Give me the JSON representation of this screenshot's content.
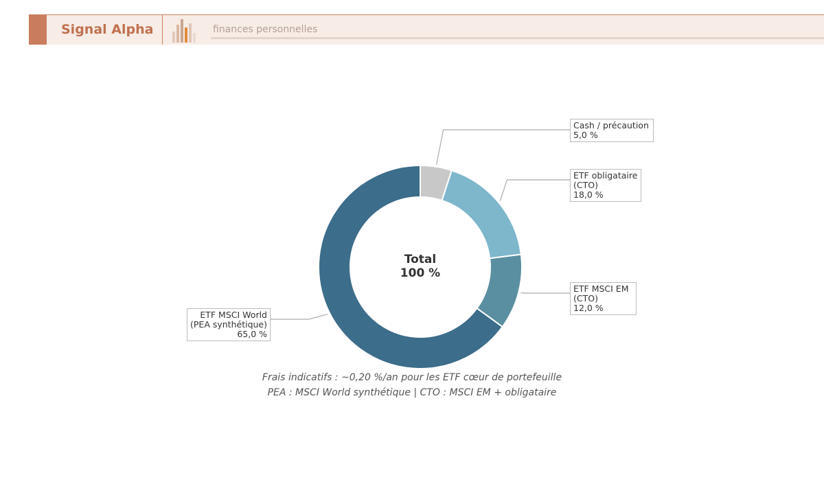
{
  "header": {
    "brand": "Signal Alpha",
    "tagline": "finances personnelles"
  },
  "chart_data": {
    "type": "pie",
    "donut": true,
    "categories": [
      "Cash / précaution",
      "ETF obligataire (CTO)",
      "ETF MSCI EM (CTO)",
      "ETF MSCI World (PEA synthétique)"
    ],
    "values": [
      5,
      18,
      12,
      65
    ],
    "value_labels": [
      "5,0 %",
      "18,0 %",
      "12,0 %",
      "65,0 %"
    ],
    "colors": [
      "#c8c8c8",
      "#7eb7cb",
      "#5a8fa1",
      "#3c6d8a"
    ],
    "center_title": "Total",
    "center_value": "100 %",
    "notes": [
      "Frais indicatifs : ~0,20 %/an pour les ETF cœur de portefeuille",
      "PEA : MSCI World synthétique | CTO : MSCI EM + obligataire"
    ]
  }
}
